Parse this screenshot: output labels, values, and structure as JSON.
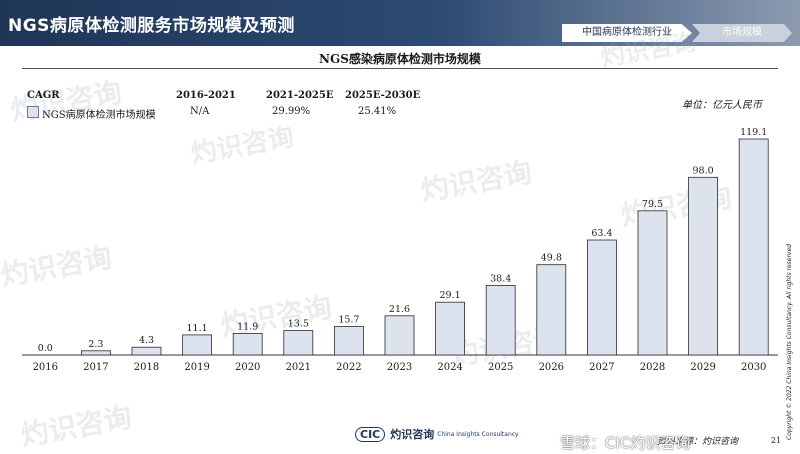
{
  "header": {
    "title": "NGS病原体检测服务市场规模及预测",
    "tabs": [
      {
        "label": "中国病原体检测行业"
      },
      {
        "label": "市场规模"
      }
    ]
  },
  "cagr": {
    "header": "CAGR",
    "periods": [
      "2016-2021",
      "2021-2025E",
      "2025E-2030E"
    ],
    "series_label": "NGS病原体检测市场规模",
    "values": [
      "N/A",
      "29.99%",
      "25.41%"
    ]
  },
  "unit": "单位：亿元人民币",
  "source": "资料来源：灼识咨询",
  "page_number": "21",
  "copyright": "Copyright © 2022 China Insights Consultancy. All rights reserved",
  "footer_logo": {
    "mark": "CIC",
    "cn": "灼识咨询",
    "en": "China Insights Consultancy"
  },
  "attribution": "雪球：CIC灼识咨询",
  "watermark": {
    "cn": "灼识咨询",
    "en": "China Insights Consultancy"
  },
  "colors": {
    "bar_fill": "#dde3ee",
    "bar_stroke": "#2b2b2b",
    "header": "#1f3556"
  },
  "chart_data": {
    "type": "bar",
    "title": "NGS感染病原体检测市场规模",
    "categories": [
      "2016",
      "2017",
      "2018",
      "2019",
      "2020",
      "2021",
      "2022",
      "2023",
      "2024",
      "2025",
      "2026",
      "2027",
      "2028",
      "2029",
      "2030"
    ],
    "values": [
      0.0,
      2.3,
      4.3,
      11.1,
      11.9,
      13.5,
      15.7,
      21.6,
      29.1,
      38.4,
      49.8,
      63.4,
      79.5,
      98.0,
      119.1
    ],
    "value_labels": [
      "0.0",
      "2.3",
      "4.3",
      "11.1",
      "11.9",
      "13.5",
      "15.7",
      "21.6",
      "29.1",
      "38.4",
      "49.8",
      "63.4",
      "79.5",
      "98.0",
      "119.1"
    ],
    "ylim": [
      0,
      119.1
    ],
    "grid": false,
    "xlabel": "",
    "ylabel": ""
  }
}
